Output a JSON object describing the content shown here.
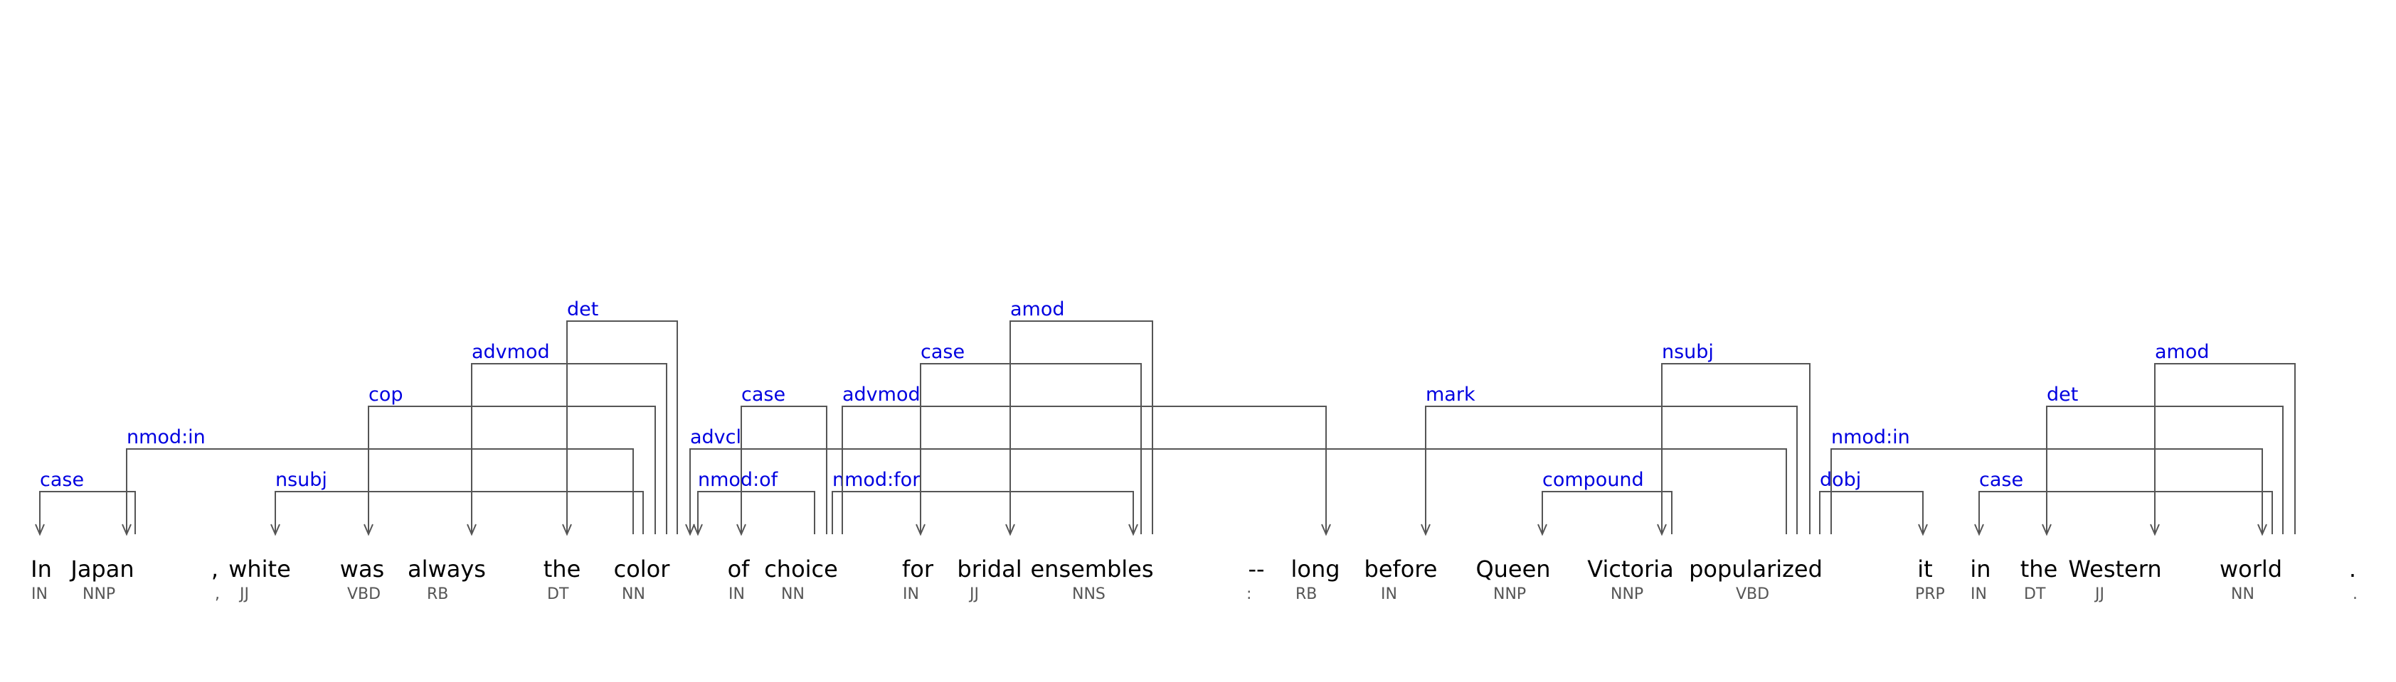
{
  "tokens": [
    {
      "text": "In",
      "pos": "IN"
    },
    {
      "text": "Japan",
      "pos": "NNP"
    },
    {
      "text": ",",
      "pos": ","
    },
    {
      "text": "white",
      "pos": "JJ"
    },
    {
      "text": "was",
      "pos": "VBD"
    },
    {
      "text": "always",
      "pos": "RB"
    },
    {
      "text": "the",
      "pos": "DT"
    },
    {
      "text": "color",
      "pos": "NN"
    },
    {
      "text": "of",
      "pos": "IN"
    },
    {
      "text": "choice",
      "pos": "NN"
    },
    {
      "text": "for",
      "pos": "IN"
    },
    {
      "text": "bridal",
      "pos": "JJ"
    },
    {
      "text": "ensembles",
      "pos": "NNS"
    },
    {
      "text": "--",
      "pos": ":"
    },
    {
      "text": "long",
      "pos": "RB"
    },
    {
      "text": "before",
      "pos": "IN"
    },
    {
      "text": "Queen",
      "pos": "NNP"
    },
    {
      "text": "Victoria",
      "pos": "NNP"
    },
    {
      "text": "popularized",
      "pos": "VBD"
    },
    {
      "text": "it",
      "pos": "PRP"
    },
    {
      "text": "in",
      "pos": "IN"
    },
    {
      "text": "the",
      "pos": "DT"
    },
    {
      "text": "Western",
      "pos": "JJ"
    },
    {
      "text": "world",
      "pos": "NN"
    },
    {
      "text": ".",
      "pos": "."
    }
  ],
  "arcs": [
    {
      "label": "case",
      "head": 1,
      "dep": 0
    },
    {
      "label": "nmod:in",
      "head": 7,
      "dep": 1
    },
    {
      "label": "nsubj",
      "head": 7,
      "dep": 3
    },
    {
      "label": "cop",
      "head": 7,
      "dep": 4
    },
    {
      "label": "advmod",
      "head": 7,
      "dep": 5
    },
    {
      "label": "det",
      "head": 7,
      "dep": 6
    },
    {
      "label": "case",
      "head": 9,
      "dep": 8
    },
    {
      "label": "nmod:of",
      "head": 7,
      "dep": 9
    },
    {
      "label": "advcl",
      "head": 7,
      "dep": 18
    },
    {
      "label": "nmod:for",
      "head": 9,
      "dep": 12
    },
    {
      "label": "case",
      "head": 12,
      "dep": 10
    },
    {
      "label": "amod",
      "head": 12,
      "dep": 11
    },
    {
      "label": "advmod",
      "head": 9,
      "dep": 14
    },
    {
      "label": "mark",
      "head": 18,
      "dep": 15
    },
    {
      "label": "compound",
      "head": 17,
      "dep": 16
    },
    {
      "label": "nsubj",
      "head": 18,
      "dep": 17
    },
    {
      "label": "dobj",
      "head": 18,
      "dep": 19
    },
    {
      "label": "nmod:in",
      "head": 18,
      "dep": 23
    },
    {
      "label": "case",
      "head": 23,
      "dep": 20
    },
    {
      "label": "det",
      "head": 23,
      "dep": 21
    },
    {
      "label": "amod",
      "head": 23,
      "dep": 22
    }
  ]
}
